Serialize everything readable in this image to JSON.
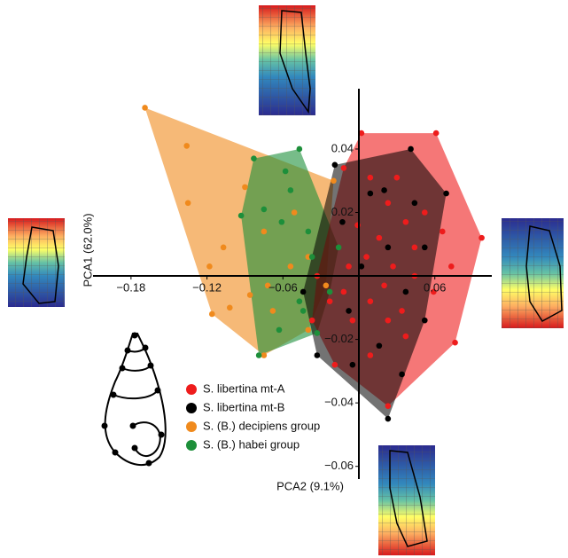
{
  "chart_data": {
    "type": "scatter",
    "x_label": "PCA2 (9.1%)",
    "y_label": "PCA1 (62.0%)",
    "xlim": [
      -0.21,
      0.105
    ],
    "ylim": [
      -0.064,
      0.059
    ],
    "xticks": [
      {
        "value": -0.18,
        "label": "−0.18"
      },
      {
        "value": -0.12,
        "label": "−0.12"
      },
      {
        "value": -0.06,
        "label": "−0.06"
      },
      0.06
    ],
    "yticks": [
      0.04,
      0.02,
      {
        "value": -0.02,
        "label": "−0.02"
      },
      {
        "value": -0.04,
        "label": "−0.04"
      },
      {
        "value": -0.06,
        "label": "−0.06"
      }
    ],
    "hulls": true,
    "series": [
      {
        "name": "S. libertina mt-A",
        "color": "#ee1c1c",
        "x": [
          0.002,
          0.061,
          0.097,
          0.076,
          0.023,
          -0.019,
          -0.037,
          -0.033,
          -0.012,
          0.009,
          0.023,
          0.037,
          0.052,
          0.066,
          0.016,
          0.006,
          -0.008,
          0.027,
          0.044,
          0.059,
          0.009,
          -0.005,
          0.023,
          0.037,
          0.009,
          -0.012,
          -0.023,
          0.073,
          0.03,
          -0.001,
          0.044,
          0.02,
          0.034
        ],
        "values": [
          0.045,
          0.045,
          0.012,
          -0.021,
          -0.041,
          -0.028,
          -0.014,
          0,
          0.034,
          0.031,
          0.023,
          0.017,
          0.02,
          0.014,
          0.012,
          0.006,
          0.003,
          0.003,
          0,
          -0.005,
          -0.008,
          -0.014,
          -0.014,
          -0.019,
          -0.025,
          -0.005,
          -0.008,
          0.003,
          0.031,
          0.016,
          0.009,
          -0.003,
          -0.011
        ]
      },
      {
        "name": "S. libertina mt-B",
        "color": "#000000",
        "x": [
          -0.019,
          0.041,
          0.069,
          0.023,
          -0.033,
          -0.044,
          0.009,
          0.02,
          0.044,
          0.023,
          0.002,
          -0.008,
          0.016,
          0.037,
          0.052,
          -0.005,
          0.034,
          -0.013,
          0.052
        ],
        "values": [
          0.035,
          0.04,
          0.026,
          -0.045,
          -0.025,
          -0.005,
          0.026,
          0.027,
          0.023,
          0.009,
          0.003,
          -0.011,
          -0.022,
          -0.005,
          0.009,
          -0.028,
          -0.031,
          0.017,
          -0.014
        ]
      },
      {
        "name": "S. (B.) decipiens group",
        "color": "#f08a1d",
        "x": [
          -0.169,
          -0.116,
          -0.075,
          -0.02,
          -0.136,
          -0.135,
          -0.118,
          -0.102,
          -0.086,
          -0.072,
          -0.054,
          -0.04,
          -0.09,
          -0.075,
          -0.068,
          -0.04,
          -0.051,
          -0.026,
          -0.107
        ],
        "values": [
          0.053,
          -0.012,
          -0.025,
          0.03,
          0.041,
          0.023,
          0.003,
          -0.01,
          -0.006,
          -0.003,
          0.003,
          0.006,
          0.028,
          0.014,
          -0.011,
          -0.017,
          0.02,
          -0.003,
          0.009
        ]
      },
      {
        "name": "S. (B.) habei group",
        "color": "#1d8f3a",
        "x": [
          -0.083,
          -0.047,
          -0.079,
          -0.033,
          -0.093,
          -0.075,
          -0.061,
          -0.058,
          -0.054,
          -0.04,
          -0.037,
          -0.047,
          -0.063,
          -0.044,
          -0.023,
          -0.016,
          -0.033
        ],
        "values": [
          0.037,
          0.04,
          -0.025,
          -0.018,
          0.019,
          0.021,
          0.017,
          0.033,
          0.027,
          0.014,
          0.006,
          -0.008,
          -0.017,
          -0.011,
          -0.005,
          0.009,
          0
        ]
      }
    ]
  }
}
